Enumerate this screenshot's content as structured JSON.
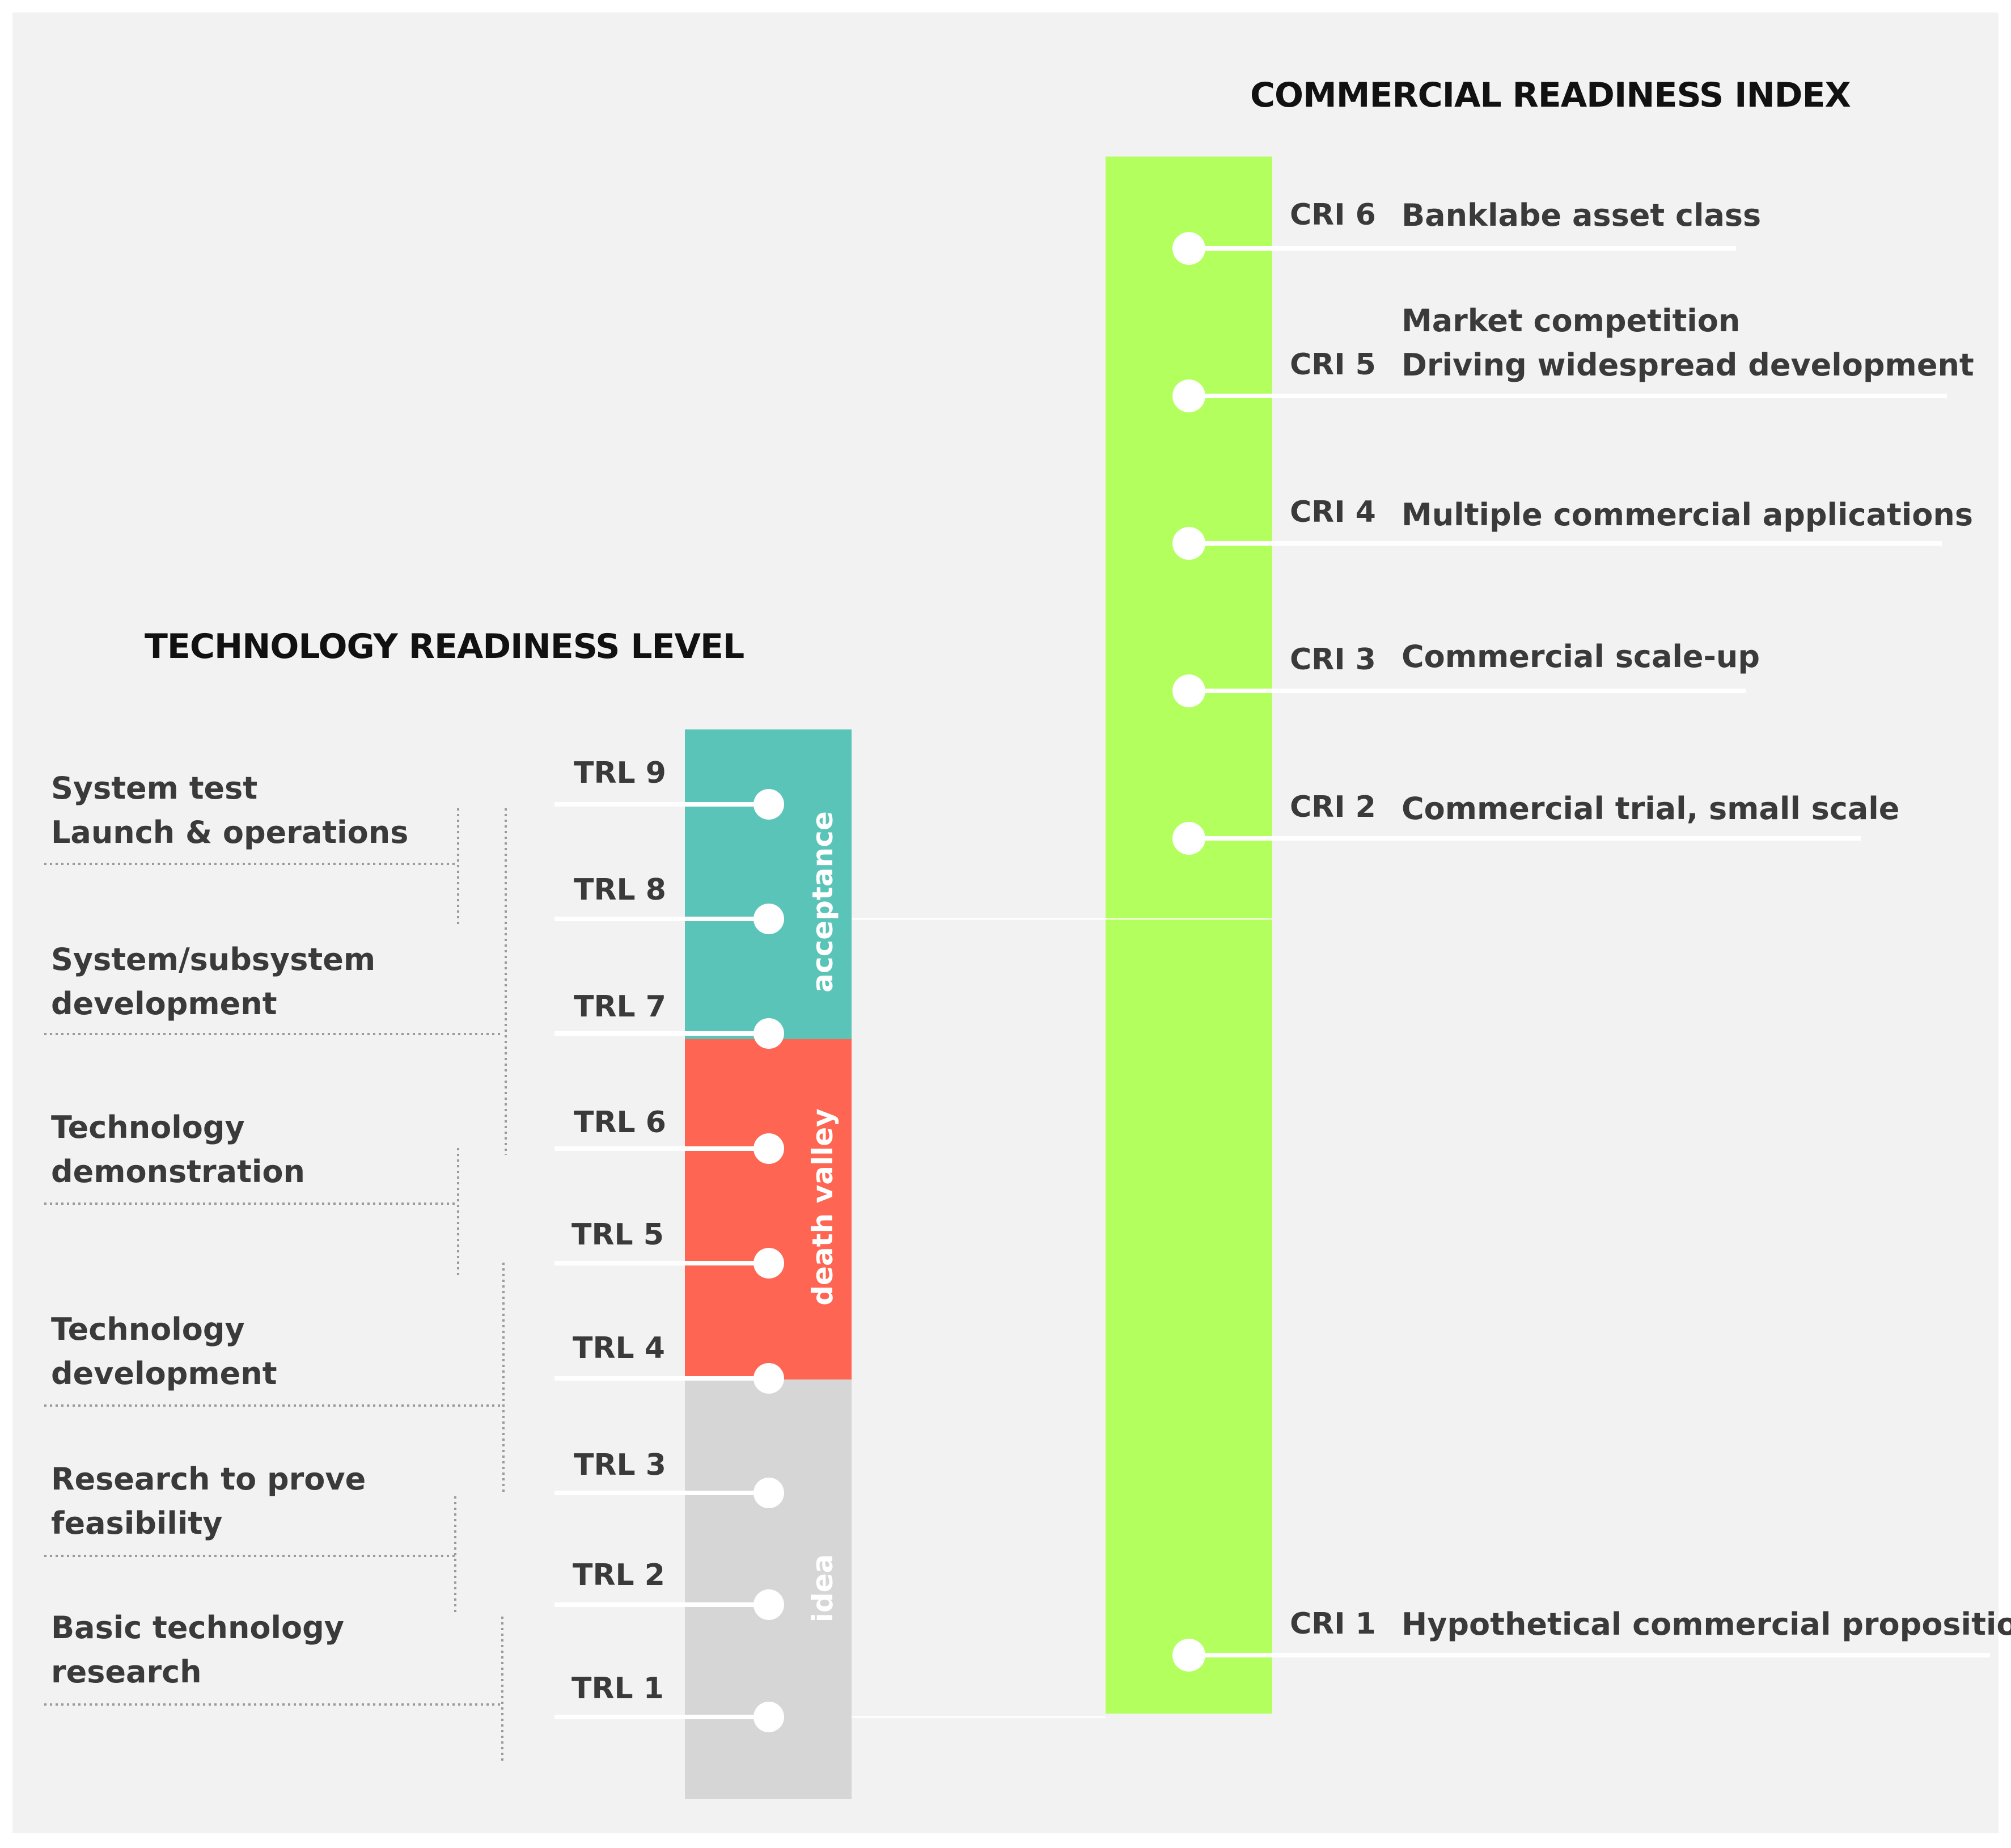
{
  "trl": {
    "title": "TECHNOLOGY READINESS LEVEL",
    "levels": [
      {
        "label": "TRL 9"
      },
      {
        "label": "TRL 8"
      },
      {
        "label": "TRL 7"
      },
      {
        "label": "TRL 6"
      },
      {
        "label": "TRL 5"
      },
      {
        "label": "TRL 4"
      },
      {
        "label": "TRL 3"
      },
      {
        "label": "TRL 2"
      },
      {
        "label": "TRL 1"
      }
    ],
    "zones": [
      {
        "label": "acceptance",
        "color": "#5bc4b8"
      },
      {
        "label": "death valley",
        "color": "#fe6552"
      },
      {
        "label": "idea",
        "color": "#d6d6d6"
      }
    ],
    "stages": [
      {
        "lines": [
          "System test",
          "Launch & operations"
        ]
      },
      {
        "lines": [
          "System/subsystem",
          "development"
        ]
      },
      {
        "lines": [
          "Technology",
          "demonstration"
        ]
      },
      {
        "lines": [
          "Technology",
          "development"
        ]
      },
      {
        "lines": [
          "Research to prove",
          "feasibility"
        ]
      },
      {
        "lines": [
          "Basic technology",
          "research"
        ]
      }
    ]
  },
  "cri": {
    "title": "COMMERCIAL READINESS INDEX",
    "bar_color": "#b2ff5e",
    "levels": [
      {
        "label": "CRI 6",
        "lines": [
          "Banklabe asset class"
        ]
      },
      {
        "label": "CRI 5",
        "lines": [
          "Market competition",
          "Driving widespread development"
        ]
      },
      {
        "label": "CRI 4",
        "lines": [
          "Multiple commercial applications"
        ]
      },
      {
        "label": "CRI 3",
        "lines": [
          "Commercial scale-up"
        ]
      },
      {
        "label": "CRI 2",
        "lines": [
          "Commercial trial, small scale"
        ]
      },
      {
        "label": "CRI 1",
        "lines": [
          "Hypothetical commercial proposition"
        ]
      }
    ]
  },
  "colors": {
    "background": "#f2f2f2",
    "text": "#3a3a3a",
    "title": "#111111",
    "connector": "#ffffff",
    "guide": "#9a9a9a"
  }
}
